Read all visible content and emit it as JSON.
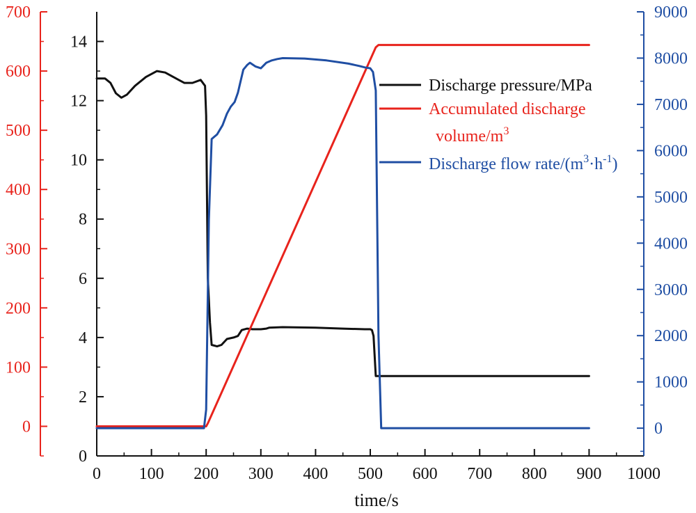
{
  "chart_data": {
    "type": "line",
    "xlabel": "time/s",
    "x_axis": {
      "range": [
        0,
        1000
      ],
      "ticks": [
        0,
        100,
        200,
        300,
        400,
        500,
        600,
        700,
        800,
        900,
        1000
      ],
      "tick_labels": [
        "0",
        "100",
        "200",
        "300",
        "400",
        "500",
        "600",
        "700",
        "800",
        "900",
        "1000"
      ]
    },
    "y_axes": [
      {
        "id": "volume",
        "side": "left-outer",
        "color": "#e8231c",
        "range": [
          -50,
          700
        ],
        "ticks": [
          0,
          100,
          200,
          300,
          400,
          500,
          600,
          700
        ],
        "tick_labels": [
          "0",
          "100",
          "200",
          "300",
          "400",
          "500",
          "600",
          "700"
        ]
      },
      {
        "id": "pressure",
        "side": "left-inner",
        "color": "#111111",
        "range": [
          0,
          15
        ],
        "ticks": [
          0,
          2,
          4,
          6,
          8,
          10,
          12,
          14
        ],
        "tick_labels": [
          "0",
          "2",
          "4",
          "6",
          "8",
          "10",
          "12",
          "14"
        ]
      },
      {
        "id": "flow",
        "side": "right",
        "color": "#1f4ea3",
        "range": [
          -600,
          9000
        ],
        "ticks": [
          0,
          1000,
          2000,
          3000,
          4000,
          5000,
          6000,
          7000,
          8000,
          9000
        ],
        "tick_labels": [
          "0",
          "1000",
          "2000",
          "3000",
          "4000",
          "5000",
          "6000",
          "7000",
          "8000",
          "9000"
        ]
      }
    ],
    "series": [
      {
        "name": "Discharge pressure/MPa",
        "axis": "pressure",
        "color": "#111111",
        "x": [
          0,
          15,
          25,
          35,
          45,
          55,
          70,
          90,
          110,
          125,
          140,
          160,
          175,
          190,
          198,
          200,
          203,
          207,
          210,
          220,
          228,
          238,
          250,
          258,
          265,
          275,
          285,
          300,
          310,
          315,
          340,
          400,
          450,
          490,
          500,
          503,
          506,
          510,
          520,
          600,
          700,
          800,
          900
        ],
        "y": [
          12.75,
          12.75,
          12.6,
          12.25,
          12.1,
          12.2,
          12.5,
          12.8,
          13.0,
          12.95,
          12.8,
          12.6,
          12.6,
          12.7,
          12.5,
          11.5,
          6.0,
          4.5,
          3.75,
          3.7,
          3.75,
          3.95,
          4.0,
          4.05,
          4.25,
          4.3,
          4.28,
          4.28,
          4.3,
          4.33,
          4.35,
          4.33,
          4.3,
          4.28,
          4.28,
          4.25,
          4.05,
          2.7,
          2.7,
          2.7,
          2.7,
          2.7,
          2.7
        ]
      },
      {
        "name": "Accumulated discharge volume/m3",
        "legend_text": "Accumulated discharge",
        "legend_sub": "volume/m",
        "legend_sup": "3",
        "axis": "volume",
        "color": "#e8231c",
        "x": [
          0,
          195,
          200,
          203,
          510,
          515,
          900
        ],
        "y": [
          0,
          0,
          0,
          5,
          640,
          644,
          644
        ]
      },
      {
        "name": "Discharge flow rate/(m3·h-1)",
        "legend_text": "Discharge flow rate/(m",
        "legend_sup1": "3",
        "legend_mid": "·h",
        "legend_sup2": "-1",
        "legend_end": ")",
        "axis": "flow",
        "color": "#1f4ea3",
        "x": [
          0,
          190,
          196,
          200,
          205,
          210,
          215,
          220,
          230,
          238,
          245,
          252,
          258,
          262,
          268,
          275,
          280,
          290,
          300,
          310,
          320,
          330,
          340,
          380,
          420,
          460,
          480,
          490,
          500,
          505,
          510,
          515,
          520,
          900
        ],
        "y": [
          0,
          0,
          0,
          400,
          4500,
          6250,
          6300,
          6350,
          6550,
          6800,
          6950,
          7050,
          7250,
          7450,
          7750,
          7850,
          7900,
          7820,
          7780,
          7900,
          7950,
          7980,
          8000,
          7990,
          7950,
          7880,
          7830,
          7800,
          7780,
          7700,
          7300,
          2000,
          0,
          0
        ]
      }
    ]
  }
}
